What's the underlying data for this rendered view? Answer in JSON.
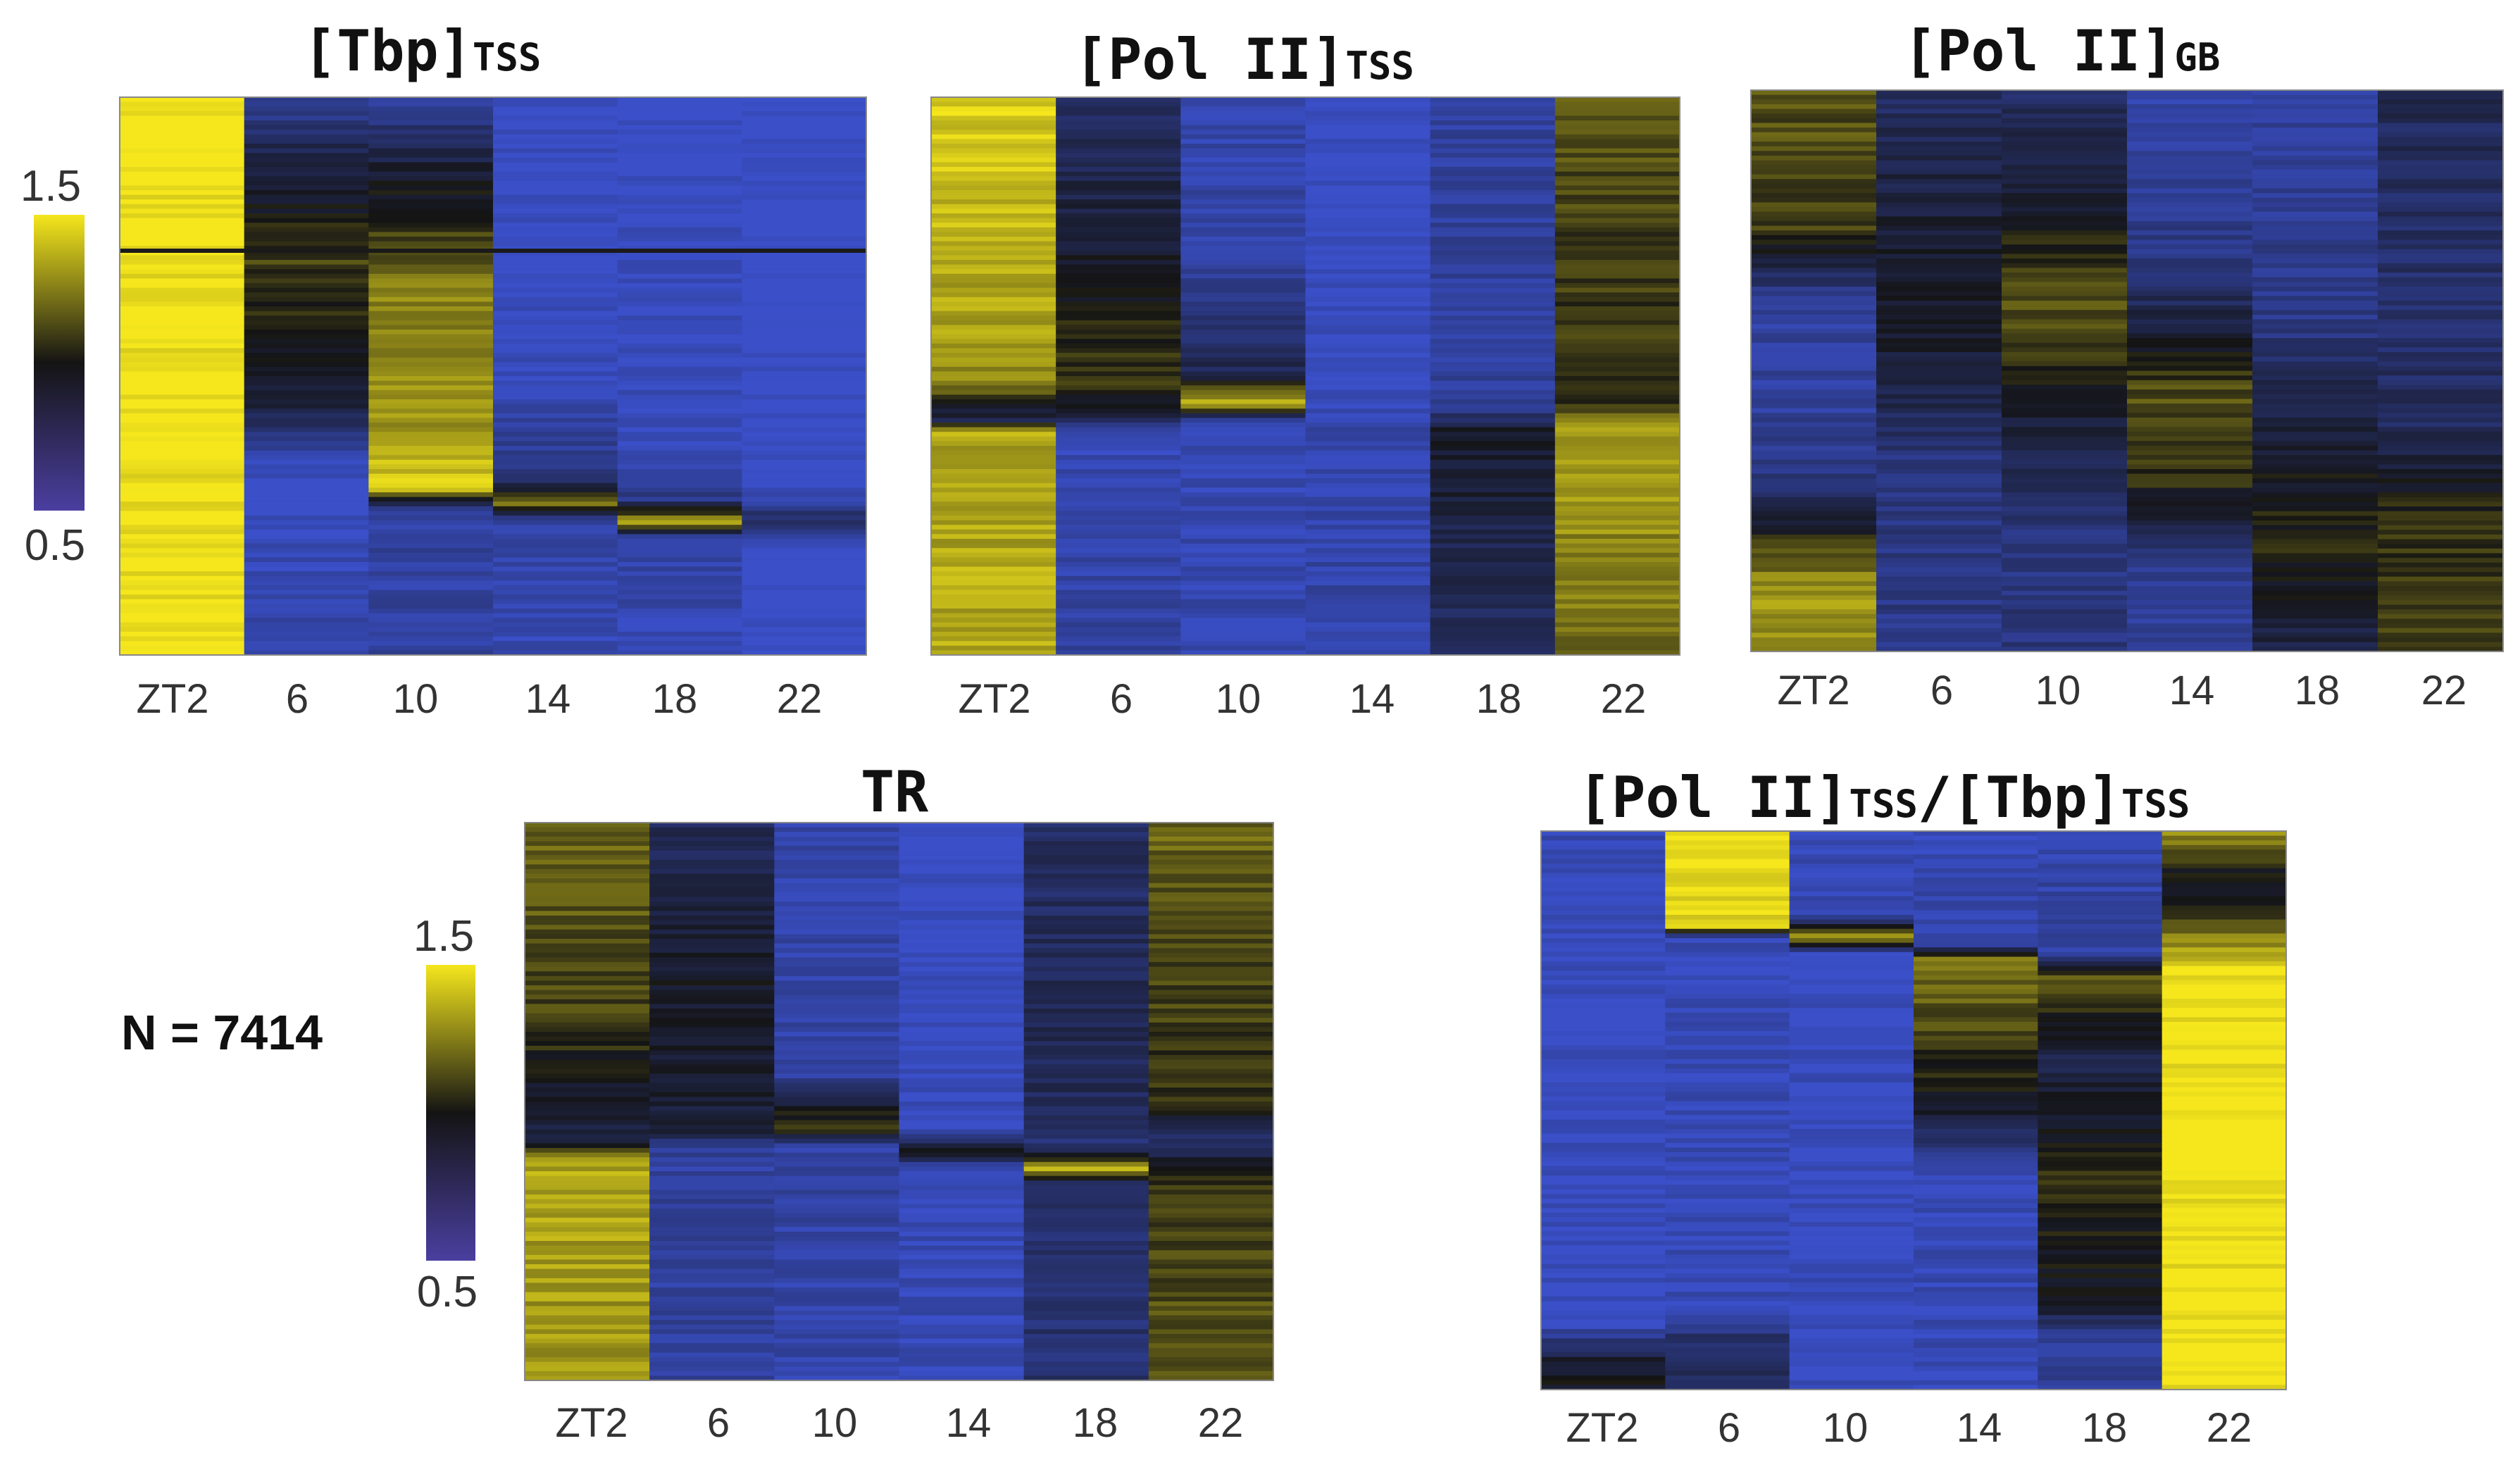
{
  "chart_data": [
    {
      "type": "heatmap",
      "id": "tbp",
      "title_main": "[Tbp]",
      "title_sub": "TSS",
      "categories": [
        "ZT2",
        "6",
        "10",
        "14",
        "18",
        "22"
      ],
      "rows": 7414,
      "scale": [
        0.5,
        1.5
      ],
      "column_profiles": [
        [
          [
            0,
            1.5
          ],
          [
            1,
            1.5
          ]
        ],
        [
          [
            0,
            0.62
          ],
          [
            0.1,
            0.85
          ],
          [
            0.3,
            1.1
          ],
          [
            0.55,
            0.9
          ],
          [
            0.66,
            0.52
          ],
          [
            0.85,
            0.55
          ],
          [
            1,
            0.6
          ]
        ],
        [
          [
            0,
            0.62
          ],
          [
            0.12,
            0.9
          ],
          [
            0.35,
            1.25
          ],
          [
            0.6,
            1.3
          ],
          [
            0.7,
            1.45
          ],
          [
            0.74,
            0.62
          ],
          [
            1,
            0.6
          ]
        ],
        [
          [
            0,
            0.5
          ],
          [
            0.5,
            0.52
          ],
          [
            0.68,
            0.7
          ],
          [
            0.73,
            1.25
          ],
          [
            0.76,
            0.6
          ],
          [
            1,
            0.55
          ]
        ],
        [
          [
            0,
            0.5
          ],
          [
            0.6,
            0.52
          ],
          [
            0.72,
            0.68
          ],
          [
            0.76,
            1.35
          ],
          [
            0.79,
            0.6
          ],
          [
            1,
            0.55
          ]
        ],
        [
          [
            0,
            0.48
          ],
          [
            0.7,
            0.5
          ],
          [
            0.76,
            0.8
          ],
          [
            0.8,
            0.5
          ],
          [
            1,
            0.5
          ]
        ]
      ]
    },
    {
      "type": "heatmap",
      "id": "pol_tss",
      "title_main": "[Pol II]",
      "title_sub": "TSS",
      "categories": [
        "ZT2",
        "6",
        "10",
        "14",
        "18",
        "22"
      ],
      "rows": 7414,
      "scale": [
        0.5,
        1.5
      ],
      "column_profiles": [
        [
          [
            0,
            1.45
          ],
          [
            0.5,
            1.3
          ],
          [
            0.58,
            0.85
          ],
          [
            0.6,
            1.35
          ],
          [
            1,
            1.35
          ]
        ],
        [
          [
            0,
            0.75
          ],
          [
            0.3,
            0.95
          ],
          [
            0.5,
            1.1
          ],
          [
            0.57,
            0.9
          ],
          [
            0.6,
            0.55
          ],
          [
            1,
            0.62
          ]
        ],
        [
          [
            0,
            0.58
          ],
          [
            0.3,
            0.6
          ],
          [
            0.5,
            0.85
          ],
          [
            0.55,
            1.45
          ],
          [
            0.58,
            0.55
          ],
          [
            1,
            0.58
          ]
        ],
        [
          [
            0,
            0.5
          ],
          [
            0.55,
            0.52
          ],
          [
            0.58,
            0.58
          ],
          [
            1,
            0.6
          ]
        ],
        [
          [
            0,
            0.62
          ],
          [
            0.55,
            0.62
          ],
          [
            0.6,
            0.95
          ],
          [
            0.8,
            0.85
          ],
          [
            1,
            0.8
          ]
        ],
        [
          [
            0,
            1.15
          ],
          [
            0.55,
            1.05
          ],
          [
            0.6,
            1.35
          ],
          [
            1,
            1.2
          ]
        ]
      ]
    },
    {
      "type": "heatmap",
      "id": "pol_gb",
      "title_main": "[Pol II]",
      "title_sub": "GB",
      "categories": [
        "ZT2",
        "6",
        "10",
        "14",
        "18",
        "22"
      ],
      "rows": 7414,
      "scale": [
        0.5,
        1.5
      ],
      "column_profiles": [
        [
          [
            0,
            1.15
          ],
          [
            0.25,
            1.1
          ],
          [
            0.38,
            0.62
          ],
          [
            0.55,
            0.62
          ],
          [
            0.7,
            0.7
          ],
          [
            0.8,
            1.05
          ],
          [
            0.88,
            1.3
          ],
          [
            1,
            1.3
          ]
        ],
        [
          [
            0,
            0.78
          ],
          [
            0.3,
            0.95
          ],
          [
            0.5,
            0.9
          ],
          [
            0.65,
            0.72
          ],
          [
            1,
            0.68
          ]
        ],
        [
          [
            0,
            0.78
          ],
          [
            0.2,
            0.95
          ],
          [
            0.4,
            1.15
          ],
          [
            0.6,
            0.9
          ],
          [
            0.8,
            0.7
          ],
          [
            1,
            0.72
          ]
        ],
        [
          [
            0,
            0.6
          ],
          [
            0.3,
            0.68
          ],
          [
            0.55,
            1.15
          ],
          [
            0.7,
            1.05
          ],
          [
            0.85,
            0.65
          ],
          [
            1,
            0.65
          ]
        ],
        [
          [
            0,
            0.62
          ],
          [
            0.4,
            0.68
          ],
          [
            0.6,
            0.9
          ],
          [
            0.8,
            1.05
          ],
          [
            1,
            0.85
          ]
        ],
        [
          [
            0,
            0.82
          ],
          [
            0.4,
            0.75
          ],
          [
            0.6,
            0.8
          ],
          [
            0.75,
            1.05
          ],
          [
            1,
            1.1
          ]
        ]
      ]
    },
    {
      "type": "heatmap",
      "id": "tr",
      "title_main": "TR",
      "title_sub": "",
      "categories": [
        "ZT2",
        "6",
        "10",
        "14",
        "18",
        "22"
      ],
      "rows": 7414,
      "scale": [
        0.5,
        1.5
      ],
      "column_profiles": [
        [
          [
            0,
            1.2
          ],
          [
            0.35,
            1.1
          ],
          [
            0.52,
            0.9
          ],
          [
            0.57,
            0.82
          ],
          [
            0.6,
            1.35
          ],
          [
            1,
            1.3
          ]
        ],
        [
          [
            0,
            0.8
          ],
          [
            0.3,
            0.95
          ],
          [
            0.55,
            0.9
          ],
          [
            0.58,
            0.62
          ],
          [
            1,
            0.62
          ]
        ],
        [
          [
            0,
            0.58
          ],
          [
            0.45,
            0.6
          ],
          [
            0.55,
            1.15
          ],
          [
            0.58,
            0.6
          ],
          [
            1,
            0.58
          ]
        ],
        [
          [
            0,
            0.5
          ],
          [
            0.55,
            0.52
          ],
          [
            0.59,
            1.05
          ],
          [
            0.62,
            0.55
          ],
          [
            1,
            0.55
          ]
        ],
        [
          [
            0,
            0.78
          ],
          [
            0.45,
            0.82
          ],
          [
            0.58,
            0.75
          ],
          [
            0.62,
            1.35
          ],
          [
            0.65,
            0.75
          ],
          [
            1,
            0.75
          ]
        ],
        [
          [
            0,
            1.2
          ],
          [
            0.5,
            1.05
          ],
          [
            0.57,
            0.75
          ],
          [
            0.65,
            1.1
          ],
          [
            1,
            1.15
          ]
        ]
      ]
    },
    {
      "type": "heatmap",
      "id": "ratio",
      "title_main": "[Pol II]",
      "title_sub": "TSS",
      "title_main2": "/[Tbp]",
      "title_sub2": "TSS",
      "categories": [
        "ZT2",
        "6",
        "10",
        "14",
        "18",
        "22"
      ],
      "rows": 7414,
      "scale": [
        0.5,
        1.5
      ],
      "column_profiles": [
        [
          [
            0,
            0.58
          ],
          [
            0.08,
            0.52
          ],
          [
            0.88,
            0.52
          ],
          [
            0.95,
            0.95
          ],
          [
            1,
            0.95
          ]
        ],
        [
          [
            0,
            1.5
          ],
          [
            0.17,
            1.45
          ],
          [
            0.19,
            0.55
          ],
          [
            0.85,
            0.55
          ],
          [
            0.92,
            0.8
          ],
          [
            1,
            0.78
          ]
        ],
        [
          [
            0,
            0.55
          ],
          [
            0.15,
            0.55
          ],
          [
            0.19,
            1.3
          ],
          [
            0.22,
            0.52
          ],
          [
            1,
            0.52
          ]
        ],
        [
          [
            0,
            0.55
          ],
          [
            0.2,
            0.58
          ],
          [
            0.23,
            1.25
          ],
          [
            0.5,
            0.95
          ],
          [
            0.6,
            0.55
          ],
          [
            1,
            0.55
          ]
        ],
        [
          [
            0,
            0.58
          ],
          [
            0.22,
            0.6
          ],
          [
            0.26,
            1.2
          ],
          [
            0.4,
            0.85
          ],
          [
            0.6,
            1.05
          ],
          [
            0.85,
            0.95
          ],
          [
            0.9,
            0.65
          ],
          [
            1,
            0.65
          ]
        ],
        [
          [
            0,
            1.3
          ],
          [
            0.1,
            0.9
          ],
          [
            0.18,
            1.2
          ],
          [
            0.25,
            1.5
          ],
          [
            1,
            1.5
          ]
        ]
      ]
    }
  ],
  "colorbars": [
    {
      "max_label": "1.5",
      "min_label": "0.5"
    },
    {
      "max_label": "1.5",
      "min_label": "0.5"
    }
  ],
  "n_label": "N = 7414",
  "colors": {
    "low": "#3a4fc8",
    "mid": "#141414",
    "high": "#f5e71c"
  }
}
